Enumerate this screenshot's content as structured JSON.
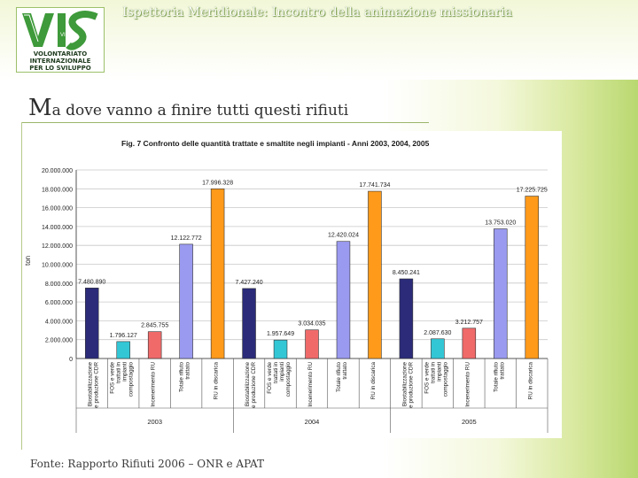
{
  "header": {
    "title": "Ispettoria Meridionale: Incontro della animazione missionaria"
  },
  "logo": {
    "acronym": "VIS",
    "line1": "VOLONTARIATO",
    "line2": "INTERNAZIONALE",
    "line3": "PER LO SVILUPPO"
  },
  "slide": {
    "title_cap": "M",
    "title_rest": "a dove vanno a finire tutti questi rifiuti"
  },
  "footer": {
    "source": "Fonte: Rapporto Rifiuti 2006 – ONR e APAT"
  },
  "colors": {
    "stabilizzazione": "#2b2b7a",
    "fos": "#33c7d6",
    "incenerimento": "#f06a6a",
    "trattato": "#9a9af0",
    "discarica": "#ff9a1a"
  },
  "chart_data": {
    "type": "bar",
    "title": "Fig. 7  Confronto delle quantità trattate e smaltite negli impianti - Anni 2003, 2004, 2005",
    "ylabel": "ton",
    "ylim": [
      0,
      20000000
    ],
    "yticks": [
      "0",
      "2.000.000",
      "4.000.000",
      "6.000.000",
      "8.000.000",
      "10.000.000",
      "12.000.000",
      "14.000.000",
      "16.000.000",
      "18.000.000",
      "20.000.000"
    ],
    "groups": [
      {
        "year": "2003",
        "bars": [
          {
            "cat": "Biostabilizzazione e produzione CDR",
            "value": 7480890,
            "label": "7.480.890",
            "color_key": "stabilizzazione"
          },
          {
            "cat": "FOS e verde trattati in impianti compostaggio",
            "value": 1796127,
            "label": "1.796.127",
            "color_key": "fos"
          },
          {
            "cat": "Incenerimento RU",
            "value": 2845755,
            "label": "2.845.755",
            "color_key": "incenerimento"
          },
          {
            "cat": "Totale rifiuto trattato",
            "value": 12122772,
            "label": "12.122.772",
            "color_key": "trattato"
          },
          {
            "cat": "RU in discarica",
            "value": 17996328,
            "label": "17.996.328",
            "color_key": "discarica"
          }
        ]
      },
      {
        "year": "2004",
        "bars": [
          {
            "cat": "Biostabilizzazione e produzione CDR",
            "value": 7427240,
            "label": "7.427.240",
            "color_key": "stabilizzazione"
          },
          {
            "cat": "FOS e verde trattati in impianti compostaggio",
            "value": 1957649,
            "label": "1.957.649",
            "color_key": "fos"
          },
          {
            "cat": "Incenerimento RU",
            "value": 3034035,
            "label": "3.034.035",
            "color_key": "incenerimento"
          },
          {
            "cat": "Totale rifiuto trattato",
            "value": 12420024,
            "label": "12.420.024",
            "color_key": "trattato"
          },
          {
            "cat": "RU in discarica",
            "value": 17741734,
            "label": "17.741.734",
            "color_key": "discarica"
          }
        ]
      },
      {
        "year": "2005",
        "bars": [
          {
            "cat": "Biostabilizzazione e produzione CDR",
            "value": 8450241,
            "label": "8.450.241",
            "color_key": "stabilizzazione"
          },
          {
            "cat": "FOS e verde trattati in impianti compostaggio",
            "value": 2087630,
            "label": "2.087.630",
            "color_key": "fos"
          },
          {
            "cat": "Incenerimento RU",
            "value": 3212757,
            "label": "3.212.757",
            "color_key": "incenerimento"
          },
          {
            "cat": "Totale rifiuto trattato",
            "value": 13753020,
            "label": "13.753.020",
            "color_key": "trattato"
          },
          {
            "cat": "RU in discarica",
            "value": 17225725,
            "label": "17.225.725",
            "color_key": "discarica"
          }
        ]
      }
    ]
  }
}
